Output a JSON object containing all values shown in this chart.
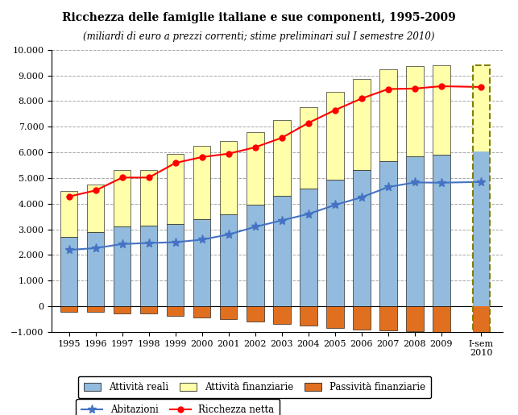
{
  "years": [
    "1995",
    "1996",
    "1997",
    "1998",
    "1999",
    "2000",
    "2001",
    "2002",
    "2003",
    "2004",
    "2005",
    "2006",
    "2007",
    "2008",
    "2009",
    "I-sem\n2010"
  ],
  "x_positions": [
    0,
    1,
    2,
    3,
    4,
    5,
    6,
    7,
    8,
    9,
    10,
    11,
    12,
    13,
    14,
    15.5
  ],
  "x_years": [
    1995,
    1996,
    1997,
    1998,
    1999,
    2000,
    2001,
    2002,
    2003,
    2004,
    2005,
    2006,
    2007,
    2008,
    2009
  ],
  "attivita_reali": [
    2700,
    2900,
    3100,
    3150,
    3200,
    3400,
    3600,
    3950,
    4300,
    4600,
    4950,
    5300,
    5650,
    5850,
    5900,
    6050
  ],
  "attivita_finanziarie": [
    1800,
    1850,
    2200,
    2150,
    2750,
    2850,
    2850,
    2850,
    2950,
    3150,
    3400,
    3550,
    3600,
    3500,
    3500,
    3350
  ],
  "passivita_finanziarie": [
    -220,
    -230,
    -270,
    -280,
    -360,
    -430,
    -500,
    -600,
    -680,
    -760,
    -840,
    -900,
    -950,
    -980,
    -1000,
    -1050
  ],
  "abitazioni": [
    2200,
    2270,
    2430,
    2470,
    2500,
    2600,
    2800,
    3100,
    3350,
    3600,
    3950,
    4250,
    4650,
    4830,
    4820,
    4850
  ],
  "ricchezza_netta": [
    4280,
    4520,
    5020,
    5020,
    5590,
    5820,
    5950,
    6200,
    6570,
    7150,
    7650,
    8100,
    8470,
    8490,
    8580,
    8550
  ],
  "bar_color_reali": "#92BBDD",
  "bar_color_finanziarie": "#FFFFAA",
  "bar_color_passivita": "#E07020",
  "line_color_abitazioni": "#4472C4",
  "line_color_ricchezza": "#FF0000",
  "title": "Ricchezza delle famiglie italiane e sue componenti, 1995-2009",
  "subtitle": "(miliardi di euro a prezzi correnti; stime preliminari sul I semestre 2010)",
  "ylim_min": -1000,
  "ylim_max": 10000,
  "yticks": [
    -1000,
    0,
    1000,
    2000,
    3000,
    4000,
    5000,
    6000,
    7000,
    8000,
    9000,
    10000
  ],
  "legend_labels": [
    "Attività reali",
    "Attività finanziarie",
    "Passività finanziarie",
    "Abitazioni",
    "Ricchezza netta"
  ],
  "bar_width": 0.65
}
